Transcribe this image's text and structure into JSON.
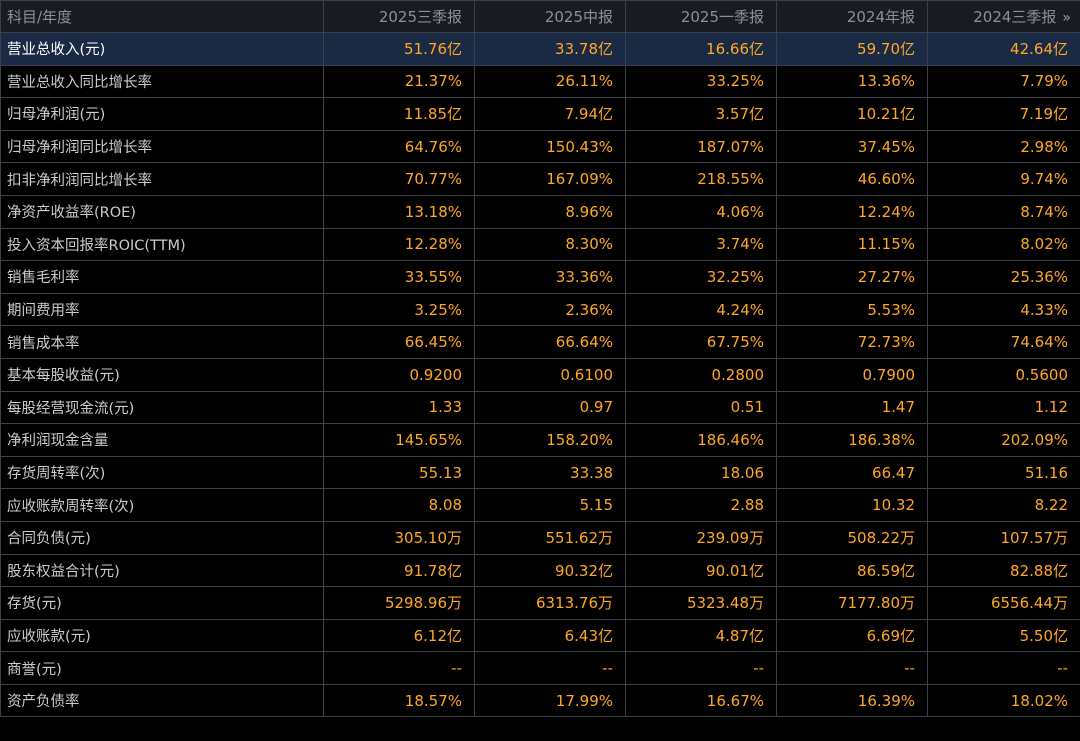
{
  "table": {
    "corner_label": "科目/年度",
    "columns": [
      "2025三季报",
      "2025中报",
      "2025一季报",
      "2024年报",
      "2024三季报"
    ],
    "more_icon": "double-chevron-right-icon",
    "more_glyph": "»",
    "rows": [
      {
        "label": "营业总收入(元)",
        "values": [
          "51.76亿",
          "33.78亿",
          "16.66亿",
          "59.70亿",
          "42.64亿"
        ]
      },
      {
        "label": "营业总收入同比增长率",
        "values": [
          "21.37%",
          "26.11%",
          "33.25%",
          "13.36%",
          "7.79%"
        ]
      },
      {
        "label": "归母净利润(元)",
        "values": [
          "11.85亿",
          "7.94亿",
          "3.57亿",
          "10.21亿",
          "7.19亿"
        ]
      },
      {
        "label": "归母净利润同比增长率",
        "values": [
          "64.76%",
          "150.43%",
          "187.07%",
          "37.45%",
          "2.98%"
        ]
      },
      {
        "label": "扣非净利润同比增长率",
        "values": [
          "70.77%",
          "167.09%",
          "218.55%",
          "46.60%",
          "9.74%"
        ]
      },
      {
        "label": "净资产收益率(ROE)",
        "values": [
          "13.18%",
          "8.96%",
          "4.06%",
          "12.24%",
          "8.74%"
        ]
      },
      {
        "label": "投入资本回报率ROIC(TTM)",
        "values": [
          "12.28%",
          "8.30%",
          "3.74%",
          "11.15%",
          "8.02%"
        ]
      },
      {
        "label": "销售毛利率",
        "values": [
          "33.55%",
          "33.36%",
          "32.25%",
          "27.27%",
          "25.36%"
        ]
      },
      {
        "label": "期间费用率",
        "values": [
          "3.25%",
          "2.36%",
          "4.24%",
          "5.53%",
          "4.33%"
        ]
      },
      {
        "label": "销售成本率",
        "values": [
          "66.45%",
          "66.64%",
          "67.75%",
          "72.73%",
          "74.64%"
        ]
      },
      {
        "label": "基本每股收益(元)",
        "values": [
          "0.9200",
          "0.6100",
          "0.2800",
          "0.7900",
          "0.5600"
        ]
      },
      {
        "label": "每股经营现金流(元)",
        "values": [
          "1.33",
          "0.97",
          "0.51",
          "1.47",
          "1.12"
        ]
      },
      {
        "label": "净利润现金含量",
        "values": [
          "145.65%",
          "158.20%",
          "186.46%",
          "186.38%",
          "202.09%"
        ]
      },
      {
        "label": "存货周转率(次)",
        "values": [
          "55.13",
          "33.38",
          "18.06",
          "66.47",
          "51.16"
        ]
      },
      {
        "label": "应收账款周转率(次)",
        "values": [
          "8.08",
          "5.15",
          "2.88",
          "10.32",
          "8.22"
        ]
      },
      {
        "label": "合同负债(元)",
        "values": [
          "305.10万",
          "551.62万",
          "239.09万",
          "508.22万",
          "107.57万"
        ]
      },
      {
        "label": "股东权益合计(元)",
        "values": [
          "91.78亿",
          "90.32亿",
          "90.01亿",
          "86.59亿",
          "82.88亿"
        ]
      },
      {
        "label": "存货(元)",
        "values": [
          "5298.96万",
          "6313.76万",
          "5323.48万",
          "7177.80万",
          "6556.44万"
        ]
      },
      {
        "label": "应收账款(元)",
        "values": [
          "6.12亿",
          "6.43亿",
          "4.87亿",
          "6.69亿",
          "5.50亿"
        ]
      },
      {
        "label": "商誉(元)",
        "values": [
          "--",
          "--",
          "--",
          "--",
          "--"
        ]
      },
      {
        "label": "资产负债率",
        "values": [
          "18.57%",
          "17.99%",
          "16.67%",
          "16.39%",
          "18.02%"
        ]
      }
    ]
  },
  "colors": {
    "value_text": "#ffa726",
    "label_text": "#c9cbd0",
    "header_text": "#8b8f98",
    "grid_line": "#3a3f48",
    "highlight_row_bg": "#1a2a44",
    "background": "#000000"
  }
}
